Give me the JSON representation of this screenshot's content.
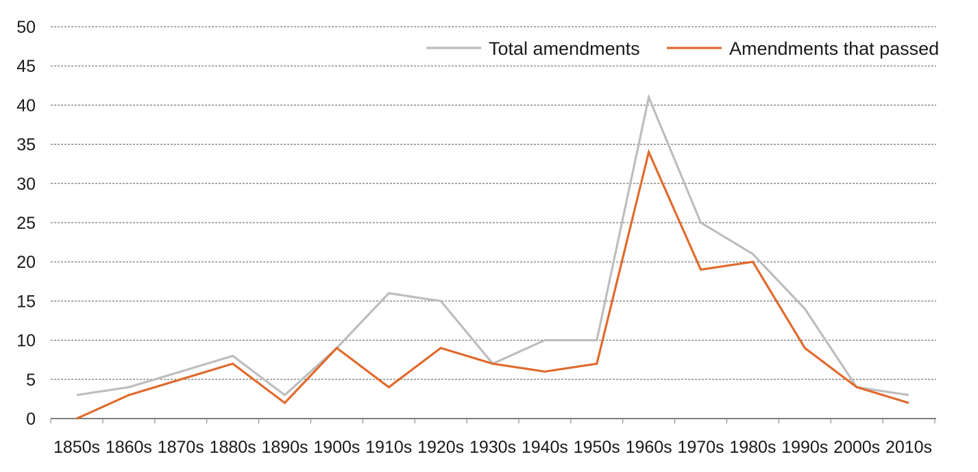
{
  "chart_data": {
    "type": "line",
    "title": "",
    "xlabel": "",
    "ylabel": "",
    "ylim": [
      0,
      50
    ],
    "yticks": [
      0,
      5,
      10,
      15,
      20,
      25,
      30,
      35,
      40,
      45,
      50
    ],
    "grid": true,
    "legend_position": "top-right",
    "categories": [
      "1850s",
      "1860s",
      "1870s",
      "1880s",
      "1890s",
      "1900s",
      "1910s",
      "1920s",
      "1930s",
      "1940s",
      "1950s",
      "1960s",
      "1970s",
      "1980s",
      "1990s",
      "2000s",
      "2010s"
    ],
    "series": [
      {
        "name": "Total amendments",
        "color": "#bdbdbd",
        "values": [
          3,
          4,
          6,
          8,
          3,
          9,
          16,
          15,
          7,
          10,
          10,
          41,
          25,
          21,
          14,
          4,
          3
        ]
      },
      {
        "name": "Amendments that passed",
        "color": "#e06a2c",
        "values": [
          0,
          3,
          5,
          7,
          2,
          9,
          4,
          9,
          7,
          6,
          7,
          34,
          19,
          20,
          9,
          4,
          2
        ]
      }
    ]
  }
}
